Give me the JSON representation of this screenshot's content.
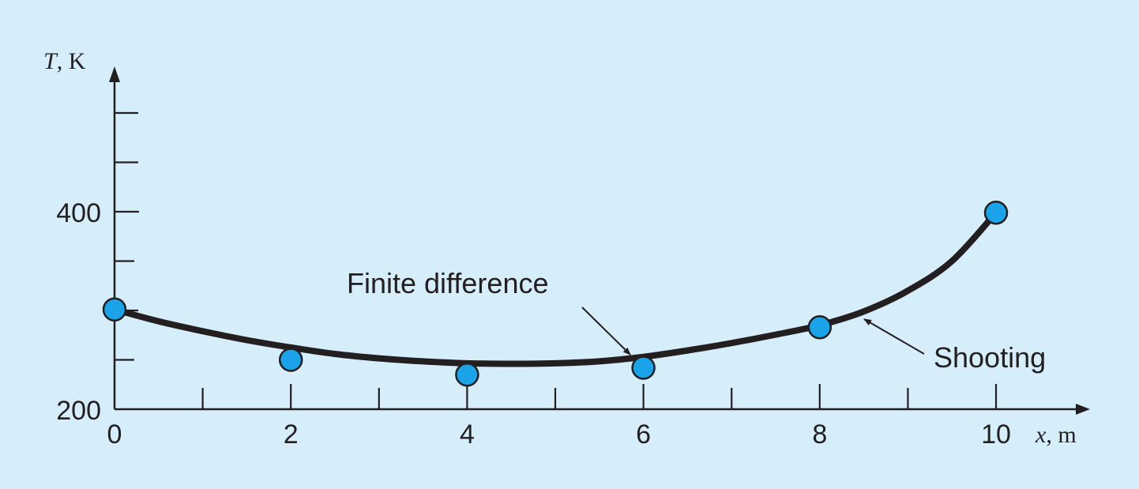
{
  "chart_data": {
    "type": "line",
    "colors": {
      "background": "#d6eefa",
      "curve": "#231f20",
      "marker": "#1aa3e8",
      "axis": "#231f20"
    },
    "ylabel": {
      "var": "T",
      "unit": ", K"
    },
    "xlabel": {
      "var": "x",
      "unit": ", m"
    },
    "xlim": [
      0,
      10.5
    ],
    "ylim": [
      200,
      560
    ],
    "x_ticks_labeled": [
      0,
      2,
      4,
      6,
      8,
      10
    ],
    "x_tick_labels": [
      "0",
      "2",
      "4",
      "6",
      "8",
      "10"
    ],
    "x_ticks_minor": [
      1,
      3,
      5,
      7,
      9
    ],
    "y_ticks_labeled": [
      200,
      400
    ],
    "y_tick_labels": [
      "200",
      "400"
    ],
    "y_ticks_minor": [
      250,
      300,
      350,
      450,
      500
    ],
    "series": [
      {
        "name": "Shooting",
        "style": "line",
        "x": [
          0,
          0.5,
          1,
          1.5,
          2,
          2.5,
          3,
          3.5,
          4,
          4.5,
          5,
          5.5,
          6,
          6.5,
          7,
          7.5,
          8,
          8.5,
          9,
          9.5,
          10
        ],
        "y": [
          301,
          289,
          279,
          270,
          262.5,
          256,
          251.5,
          248.5,
          246.5,
          246,
          246.5,
          248.5,
          253,
          259.5,
          267,
          275.5,
          285,
          299,
          320,
          350,
          399
        ]
      },
      {
        "name": "Finite difference",
        "style": "markers",
        "x": [
          0,
          2,
          4,
          6,
          8,
          10
        ],
        "y": [
          301,
          250,
          235,
          242,
          283,
          399
        ]
      }
    ],
    "annotations": {
      "finite_difference": "Finite difference",
      "shooting": "Shooting"
    }
  }
}
